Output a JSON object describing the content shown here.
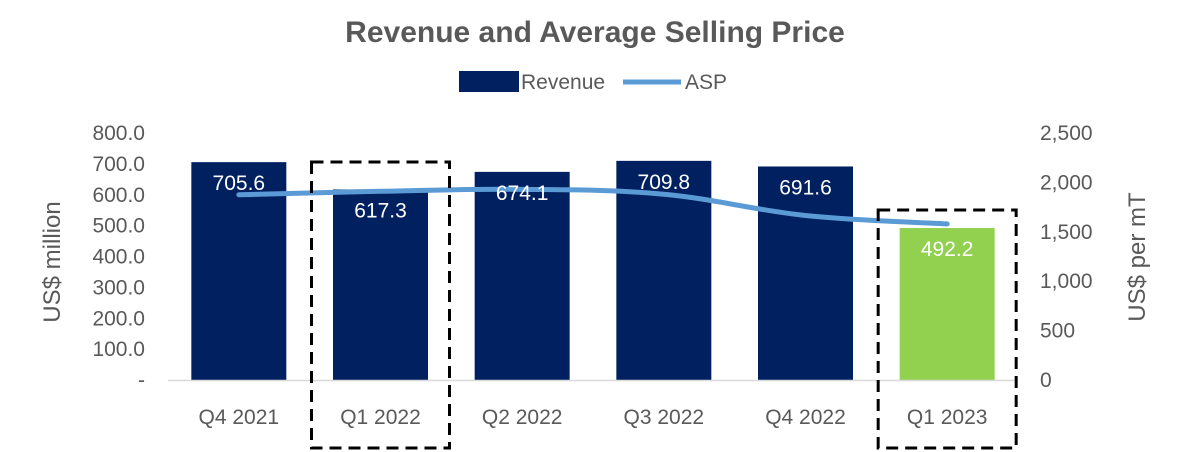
{
  "chart_data": {
    "type": "bar",
    "title": "Revenue and Average Selling Price",
    "categories": [
      "Q4 2021",
      "Q1 2022",
      "Q2 2022",
      "Q3 2022",
      "Q4 2022",
      "Q1 2023"
    ],
    "series": [
      {
        "name": "Revenue",
        "type": "bar",
        "axis": "left",
        "values": [
          705.6,
          617.3,
          674.1,
          709.8,
          691.6,
          492.2
        ],
        "data_labels": [
          "705.6",
          "617.3",
          "674.1",
          "709.8",
          "691.6",
          "492.2"
        ],
        "color": "#002060",
        "highlight_color": "#92D050",
        "highlight_categories": [
          "Q1 2023"
        ]
      },
      {
        "name": "ASP",
        "type": "line",
        "axis": "right",
        "values": [
          1875,
          1910,
          1930,
          1880,
          1665,
          1580
        ],
        "color": "#5B9BD5"
      }
    ],
    "ylabel": "US$ million",
    "ylabel_right": "US$ per mT",
    "ylim": [
      0,
      800
    ],
    "ylim_right": [
      0,
      2500
    ],
    "yticks": [
      "-",
      "100.0",
      "200.0",
      "300.0",
      "400.0",
      "500.0",
      "600.0",
      "700.0",
      "800.0"
    ],
    "yticks_right": [
      "0",
      "500",
      "1,000",
      "1,500",
      "2,000",
      "2,500"
    ],
    "legend_position": "top-center",
    "grid": false,
    "annotations": [
      {
        "type": "dashed-box",
        "category": "Q1 2022"
      },
      {
        "type": "dashed-box",
        "category": "Q1 2023"
      }
    ]
  }
}
